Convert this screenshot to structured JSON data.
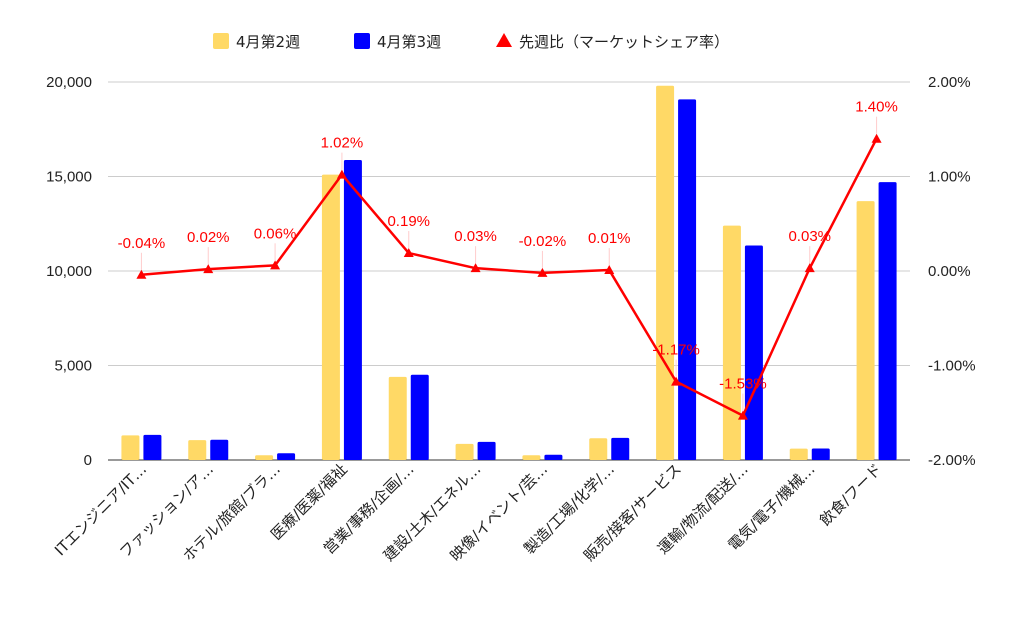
{
  "chart_data": {
    "type": "bar",
    "categories": [
      "ITエンジニア/IT…",
      "ファッション/ア…",
      "ホテル/旅館/ブラ…",
      "医療/医薬/福祉",
      "営業/事務/企画/…",
      "建設/土木/エネル…",
      "映像/イベント/芸…",
      "製造/工場/化学/…",
      "販売/接客/サービス",
      "運輸/物流/配送/…",
      "電気/電子/機械…",
      "飲食/フード"
    ],
    "series": [
      {
        "name": "4月第2週",
        "type": "bar",
        "axis": "left",
        "color": "#ffd966",
        "values": [
          1300,
          1050,
          250,
          15100,
          4400,
          850,
          250,
          1150,
          19800,
          12400,
          600,
          13700
        ]
      },
      {
        "name": "4月第3週",
        "type": "bar",
        "axis": "left",
        "color": "#0000ff",
        "values": [
          1330,
          1070,
          360,
          15870,
          4510,
          960,
          280,
          1170,
          19080,
          11350,
          610,
          14700
        ]
      },
      {
        "name": "先週比（マーケットシェア率）",
        "type": "line",
        "axis": "right",
        "color": "#ff0000",
        "marker": "triangle",
        "values": [
          -0.04,
          0.02,
          0.06,
          1.02,
          0.19,
          0.03,
          -0.02,
          0.01,
          -1.17,
          -1.53,
          0.03,
          1.4
        ],
        "labels": [
          "-0.04%",
          "0.02%",
          "0.06%",
          "1.02%",
          "0.19%",
          "0.03%",
          "-0.02%",
          "0.01%",
          "-1.17%",
          "-1.53%",
          "0.03%",
          "1.40%"
        ]
      }
    ],
    "left_axis": {
      "min": 0,
      "max": 20000,
      "ticks": [
        0,
        5000,
        10000,
        15000,
        20000
      ],
      "tick_labels": [
        "0",
        "5,000",
        "10,000",
        "15,000",
        "20,000"
      ]
    },
    "right_axis": {
      "min": -2,
      "max": 2,
      "ticks": [
        -2,
        -1,
        0,
        1,
        2
      ],
      "tick_labels": [
        "-2.00%",
        "-1.00%",
        "0.00%",
        "1.00%",
        "2.00%"
      ]
    },
    "grid": true,
    "legend_position": "top"
  }
}
